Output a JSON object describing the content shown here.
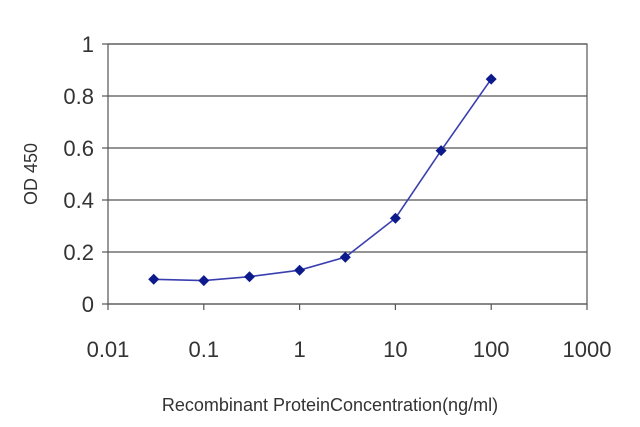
{
  "chart_data": {
    "type": "line",
    "title": "",
    "xlabel": "Recombinant ProteinConcentration(ng/ml)",
    "ylabel": "OD 450",
    "xscale": "log",
    "xlim": [
      0.01,
      1000
    ],
    "ylim": [
      0,
      1
    ],
    "x_ticks": [
      0.01,
      0.1,
      1,
      10,
      100,
      1000
    ],
    "x_tick_labels": [
      "0.01",
      "0.1",
      "1",
      "10",
      "100",
      "1000"
    ],
    "y_ticks": [
      0,
      0.2,
      0.4,
      0.6,
      0.8,
      1
    ],
    "y_tick_labels": [
      "0",
      "0.2",
      "0.4",
      "0.6",
      "0.8",
      "1"
    ],
    "grid": "horizontal",
    "legend": "none",
    "series": [
      {
        "x": [
          0.03,
          0.1,
          0.3,
          1,
          3,
          10,
          30,
          100
        ],
        "y": [
          0.095,
          0.09,
          0.105,
          0.13,
          0.18,
          0.33,
          0.59,
          0.865
        ],
        "color": "#3a3fb0",
        "marker": "diamond",
        "marker_color": "#0d1a8c"
      }
    ]
  }
}
